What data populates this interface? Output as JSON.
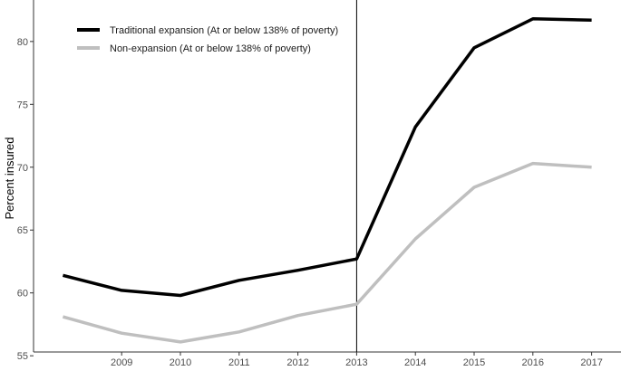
{
  "chart_data": {
    "type": "line",
    "title": "",
    "xlabel": "",
    "ylabel": "Percent insured",
    "x": [
      2008,
      2009,
      2010,
      2011,
      2012,
      2013,
      2014,
      2015,
      2016,
      2017
    ],
    "x_tick_labels": [
      "2009",
      "2010",
      "2011",
      "2012",
      "2013",
      "2014",
      "2015",
      "2016",
      "2017"
    ],
    "y_ticks": [
      "55",
      "60",
      "65",
      "70",
      "75",
      "80"
    ],
    "xlim": [
      2007.5,
      2017.5
    ],
    "ylim": [
      55.3,
      83.3
    ],
    "series": [
      {
        "name": "Traditional expansion (At or below 138% of poverty)",
        "color": "#000000",
        "values": [
          61.4,
          60.2,
          59.8,
          61.0,
          61.8,
          62.7,
          73.2,
          79.5,
          81.8,
          81.7
        ]
      },
      {
        "name": "Non-expansion (At or below 138% of poverty)",
        "color": "#bfbfbf",
        "values": [
          58.1,
          56.8,
          56.1,
          56.9,
          58.2,
          59.1,
          64.3,
          68.4,
          70.3,
          70.0
        ]
      }
    ],
    "reference_line": {
      "x": 2013,
      "color": "#000000"
    },
    "grid": false,
    "legend_position": "top-left"
  }
}
